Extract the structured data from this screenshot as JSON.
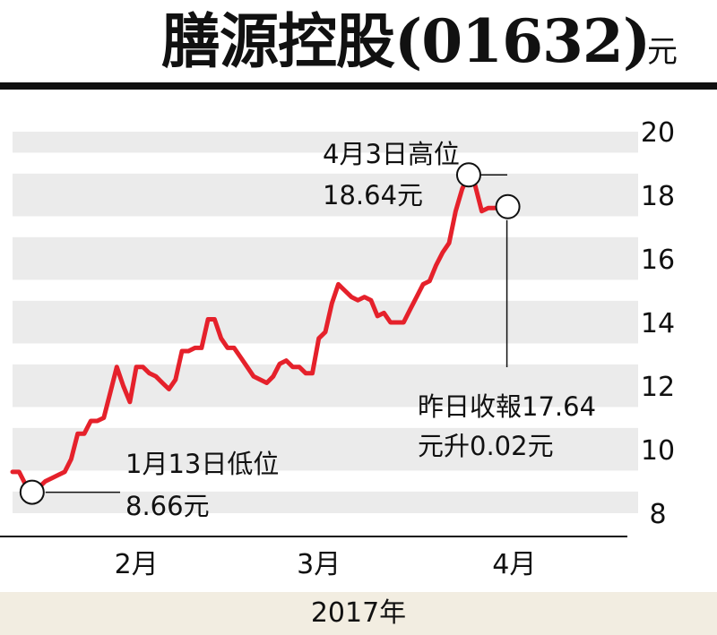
{
  "header": {
    "title": "膳源控股(01632)",
    "unit": "元"
  },
  "footer": {
    "year_label": "2017年"
  },
  "annotations": {
    "high_line1": "4月3日高位",
    "high_line2": "18.64元",
    "low_line1": "1月13日低位",
    "low_line2": "8.66元",
    "close_line1": "昨日收報17.64",
    "close_line2": "元升0.02元"
  },
  "colors": {
    "line": "#e5212b",
    "band": "#ebebeb",
    "text": "#111111",
    "footer_bg": "#f2ede1"
  },
  "chart_data": {
    "type": "line",
    "title": "膳源控股(01632)",
    "ylabel": "元",
    "xlabel": "2017年",
    "ylim": [
      8,
      20
    ],
    "yticks": [
      8,
      10,
      12,
      14,
      16,
      18,
      20
    ],
    "xlim": [
      0,
      96
    ],
    "xticks": [
      {
        "label": "2月",
        "x": 19
      },
      {
        "label": "3月",
        "x": 47
      },
      {
        "label": "4月",
        "x": 77
      }
    ],
    "grid": "alternating-horizontal-bands",
    "series": [
      {
        "values": [
          [
            0,
            9.3
          ],
          [
            1,
            9.3
          ],
          [
            2,
            8.9
          ],
          [
            3,
            8.66
          ],
          [
            4,
            8.8
          ],
          [
            5,
            9.0
          ],
          [
            6,
            9.1
          ],
          [
            7,
            9.2
          ],
          [
            8,
            9.3
          ],
          [
            9,
            9.7
          ],
          [
            10,
            10.5
          ],
          [
            11,
            10.5
          ],
          [
            12,
            10.9
          ],
          [
            13,
            10.9
          ],
          [
            14,
            11.0
          ],
          [
            15,
            11.8
          ],
          [
            16,
            12.6
          ],
          [
            17,
            12.0
          ],
          [
            18,
            11.5
          ],
          [
            19,
            12.6
          ],
          [
            20,
            12.6
          ],
          [
            21,
            12.4
          ],
          [
            22,
            12.3
          ],
          [
            23,
            12.1
          ],
          [
            24,
            11.9
          ],
          [
            25,
            12.2
          ],
          [
            26,
            13.1
          ],
          [
            27,
            13.1
          ],
          [
            28,
            13.2
          ],
          [
            29,
            13.2
          ],
          [
            30,
            14.1
          ],
          [
            31,
            14.1
          ],
          [
            32,
            13.5
          ],
          [
            33,
            13.2
          ],
          [
            34,
            13.2
          ],
          [
            35,
            12.9
          ],
          [
            36,
            12.6
          ],
          [
            37,
            12.3
          ],
          [
            38,
            12.2
          ],
          [
            39,
            12.1
          ],
          [
            40,
            12.3
          ],
          [
            41,
            12.7
          ],
          [
            42,
            12.8
          ],
          [
            43,
            12.6
          ],
          [
            44,
            12.6
          ],
          [
            45,
            12.4
          ],
          [
            46,
            12.4
          ],
          [
            47,
            13.5
          ],
          [
            48,
            13.7
          ],
          [
            49,
            14.6
          ],
          [
            50,
            15.2
          ],
          [
            51,
            15.0
          ],
          [
            52,
            14.8
          ],
          [
            53,
            14.7
          ],
          [
            54,
            14.8
          ],
          [
            55,
            14.7
          ],
          [
            56,
            14.2
          ],
          [
            57,
            14.3
          ],
          [
            58,
            14.0
          ],
          [
            59,
            14.0
          ],
          [
            60,
            14.0
          ],
          [
            61,
            14.4
          ],
          [
            62,
            14.8
          ],
          [
            63,
            15.2
          ],
          [
            64,
            15.3
          ],
          [
            65,
            15.8
          ],
          [
            66,
            16.2
          ],
          [
            67,
            16.5
          ],
          [
            68,
            17.5
          ],
          [
            69,
            18.2
          ],
          [
            70,
            18.64
          ],
          [
            71,
            18.3
          ],
          [
            72,
            17.5
          ],
          [
            73,
            17.6
          ],
          [
            74,
            17.6
          ],
          [
            75,
            17.62
          ],
          [
            76,
            17.64
          ]
        ]
      }
    ],
    "markers": [
      {
        "label": "1月13日低位 8.66元",
        "x": 3,
        "y": 8.66
      },
      {
        "label": "4月3日高位 18.64元",
        "x": 70,
        "y": 18.64
      },
      {
        "label": "昨日收報17.64 元升0.02元",
        "x": 76,
        "y": 17.64
      }
    ]
  }
}
